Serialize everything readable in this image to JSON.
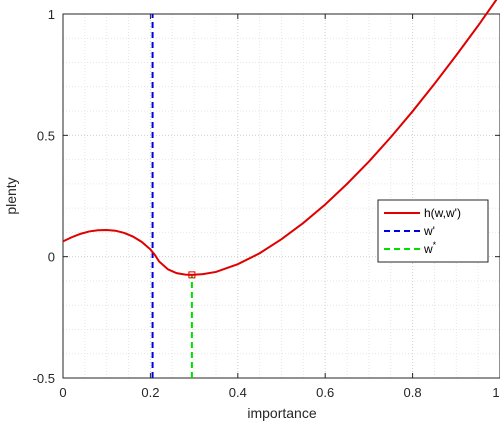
{
  "chart_data": {
    "type": "line",
    "xlabel": "importance",
    "ylabel": "plenty",
    "xlim": [
      0,
      1
    ],
    "ylim": [
      -0.5,
      1
    ],
    "x_ticks": [
      0,
      0.2,
      0.4,
      0.6,
      0.8,
      1
    ],
    "x_tick_labels": [
      "0",
      "0.2",
      "0.4",
      "0.6",
      "0.8",
      "1"
    ],
    "y_ticks": [
      -0.5,
      0,
      0.5,
      1
    ],
    "y_tick_labels": [
      "-0.5",
      "0",
      "0.5",
      "1"
    ],
    "grid": "major and minor, dotted",
    "legend_position": "right",
    "series": [
      {
        "name": "h(w,w')",
        "style": "solid",
        "color": "#e00000",
        "x": [
          0,
          0.02,
          0.04,
          0.06,
          0.08,
          0.1,
          0.12,
          0.14,
          0.16,
          0.18,
          0.2,
          0.21,
          0.22,
          0.24,
          0.26,
          0.28,
          0.295,
          0.32,
          0.35,
          0.4,
          0.45,
          0.5,
          0.55,
          0.6,
          0.65,
          0.7,
          0.75,
          0.8,
          0.85,
          0.9,
          0.95,
          1.0
        ],
        "y": [
          0.063,
          0.08,
          0.094,
          0.104,
          0.109,
          0.11,
          0.107,
          0.098,
          0.083,
          0.061,
          0.03,
          0.008,
          -0.02,
          -0.052,
          -0.068,
          -0.074,
          -0.075,
          -0.072,
          -0.063,
          -0.031,
          0.014,
          0.072,
          0.139,
          0.215,
          0.3,
          0.392,
          0.492,
          0.599,
          0.712,
          0.83,
          0.952,
          1.08
        ]
      },
      {
        "name": "w'",
        "style": "dashed",
        "color": "#0000e0",
        "x": [
          0.205,
          0.205
        ],
        "y": [
          -0.5,
          1
        ]
      },
      {
        "name": "w*",
        "style": "dashed",
        "color": "#00e000",
        "x": [
          0.295,
          0.295
        ],
        "y": [
          -0.5,
          -0.075
        ]
      }
    ],
    "marker": {
      "x": 0.295,
      "y": -0.075,
      "shape": "square",
      "color": "#e00000"
    },
    "legend": [
      {
        "label": "h(w,w')",
        "base": "h(w,w')",
        "sup": "",
        "color": "#e00000",
        "style": "solid"
      },
      {
        "label": "w'",
        "base": "w'",
        "sup": "",
        "color": "#0000e0",
        "style": "dashed"
      },
      {
        "label": "w*",
        "base": "w",
        "sup": "*",
        "color": "#00e000",
        "style": "dashed"
      }
    ]
  }
}
